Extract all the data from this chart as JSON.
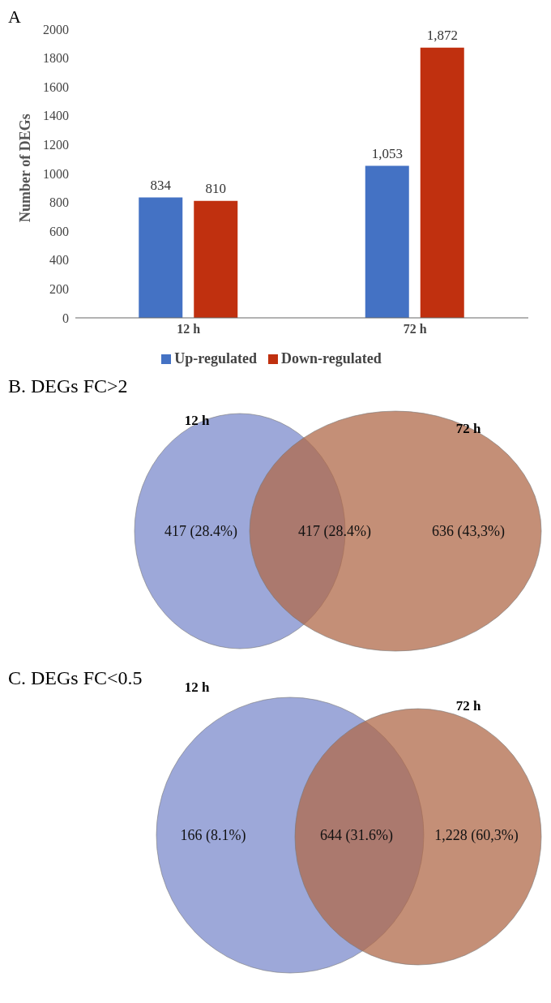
{
  "chart_data": [
    {
      "type": "bar",
      "title": "A",
      "ylabel": "Number of DEGs",
      "categories": [
        "12 h",
        "72 h"
      ],
      "series": [
        {
          "name": "Up-regulated",
          "color": "#4472c4",
          "values": [
            834,
            1053
          ],
          "value_labels": [
            "834",
            "1,053"
          ]
        },
        {
          "name": "Down-regulated",
          "color": "#c0300f",
          "values": [
            810,
            1872
          ],
          "value_labels": [
            "810",
            "1,872"
          ]
        }
      ],
      "ylim": [
        0,
        2000
      ],
      "yticks": [
        0,
        200,
        400,
        600,
        800,
        1000,
        1200,
        1400,
        1600,
        1800,
        2000
      ],
      "grid": false,
      "legend": "bottom"
    },
    {
      "type": "other",
      "title": "B. DEGs FC>2",
      "categories": [
        "12 h",
        "72 h"
      ],
      "colors": [
        "#8592d0",
        "#b0694a"
      ],
      "annotations": [
        "417 (28.4%)",
        "417 (28.4%)",
        "636 (43,3%)"
      ]
    },
    {
      "type": "other",
      "title": "C. DEGs FC<0.5",
      "categories": [
        "12 h",
        "72 h"
      ],
      "colors": [
        "#8592d0",
        "#b0694a"
      ],
      "annotations": [
        "166 (8.1%)",
        "644 (31.6%)",
        "1,228 (60,3%)"
      ]
    }
  ]
}
